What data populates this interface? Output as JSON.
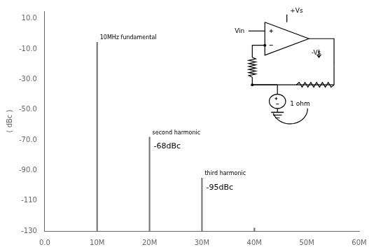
{
  "chart_data": {
    "type": "bar",
    "x": [
      10000000,
      20000000,
      30000000,
      40000000
    ],
    "values": [
      -5.5,
      -68,
      -95,
      -128
    ],
    "color": "#777777",
    "xlim": [
      0,
      60000000
    ],
    "ylim": [
      -130,
      15
    ],
    "xticks": [
      {
        "value": 0,
        "label": "0.0"
      },
      {
        "value": 10000000,
        "label": "10M"
      },
      {
        "value": 20000000,
        "label": "20M"
      },
      {
        "value": 30000000,
        "label": "30M"
      },
      {
        "value": 40000000,
        "label": "40M"
      },
      {
        "value": 50000000,
        "label": "50M"
      },
      {
        "value": 60000000,
        "label": "60M"
      }
    ],
    "yticks": [
      {
        "value": 10,
        "label": "10.0"
      },
      {
        "value": -10,
        "label": "-10.0"
      },
      {
        "value": -30,
        "label": "-30.0"
      },
      {
        "value": -50,
        "label": "-50.0"
      },
      {
        "value": -70,
        "label": "-70.0"
      },
      {
        "value": -90,
        "label": "-90.0"
      },
      -110,
      -130
    ],
    "ylabel": "( dBc )",
    "grid": false,
    "annotations": [
      {
        "text": "10MHz fundamental",
        "x": 10000000,
        "y": -5.5,
        "position": "above"
      },
      {
        "text": "second harmonic",
        "x": 20000000,
        "y": -68,
        "position": "above"
      },
      {
        "text": "-68dBc",
        "x": 20000000,
        "y": -68,
        "position": "below"
      },
      {
        "text": "third harmonic",
        "x": 30000000,
        "y": -95,
        "position": "above"
      },
      {
        "text": "-95dBc",
        "x": 30000000,
        "y": -95,
        "position": "below"
      },
      {
        "text": "Vin"
      },
      {
        "text": "+Vs"
      },
      {
        "text": "-Vs"
      },
      {
        "text": "1 ohm"
      }
    ]
  }
}
